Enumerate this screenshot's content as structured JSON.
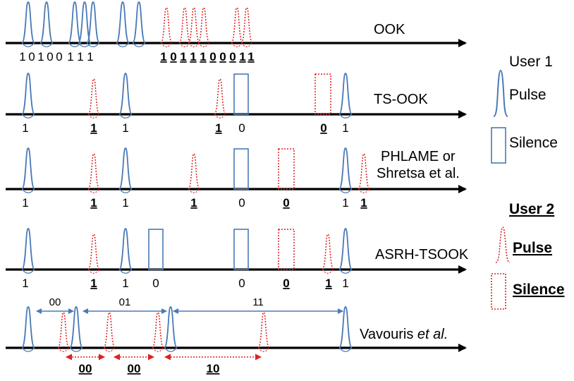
{
  "rows": [
    {
      "label": "OOK",
      "axis_y": 61,
      "user1_pulses": [
        40,
        66,
        106,
        120,
        132,
        174,
        197
      ],
      "user2_pulses": [
        236,
        262,
        275,
        289,
        336,
        350
      ],
      "user1_silences": [],
      "user2_silences": [],
      "bits": [
        {
          "text": "1",
          "x": 32,
          "u": 1
        },
        {
          "text": "0",
          "x": 45,
          "u": 1
        },
        {
          "text": "1",
          "x": 58,
          "u": 1
        },
        {
          "text": "0",
          "x": 71,
          "u": 1
        },
        {
          "text": "0",
          "x": 84,
          "u": 1
        },
        {
          "text": "1",
          "x": 100,
          "u": 1
        },
        {
          "text": "1",
          "x": 114,
          "u": 1
        },
        {
          "text": "1",
          "x": 128,
          "u": 1
        },
        {
          "text": "1",
          "x": 232,
          "u": 2
        },
        {
          "text": "0",
          "x": 246,
          "u": 2
        },
        {
          "text": "1",
          "x": 260,
          "u": 2
        },
        {
          "text": "1",
          "x": 274,
          "u": 2
        },
        {
          "text": "1",
          "x": 288,
          "u": 2
        },
        {
          "text": "0",
          "x": 302,
          "u": 2
        },
        {
          "text": "0",
          "x": 316,
          "u": 2
        },
        {
          "text": "0",
          "x": 330,
          "u": 2
        },
        {
          "text": "1",
          "x": 344,
          "u": 2
        },
        {
          "text": "1",
          "x": 356,
          "u": 2
        }
      ]
    },
    {
      "label": "TS-OOK",
      "axis_y": 162,
      "user1_pulses": [
        40,
        178,
        490
      ],
      "user2_pulses": [
        133,
        312
      ],
      "user1_silences": [
        342
      ],
      "user2_silences": [
        458
      ],
      "bits": [
        {
          "text": "1",
          "x": 36,
          "u": 1
        },
        {
          "text": "1",
          "x": 133,
          "u": 2
        },
        {
          "text": "1",
          "x": 178,
          "u": 1
        },
        {
          "text": "1",
          "x": 310,
          "u": 2
        },
        {
          "text": "0",
          "x": 343,
          "u": 1
        },
        {
          "text": "0",
          "x": 459,
          "u": 2
        },
        {
          "text": "1",
          "x": 490,
          "u": 1
        }
      ]
    },
    {
      "label": "PHLAME or",
      "label2": "Shretsa et al.",
      "axis_y": 268,
      "user1_pulses": [
        40,
        178,
        490
      ],
      "user2_pulses": [
        133,
        275,
        516
      ],
      "user1_silences": [
        342
      ],
      "user2_silences": [
        406
      ],
      "bits": [
        {
          "text": "1",
          "x": 36,
          "u": 1
        },
        {
          "text": "1",
          "x": 133,
          "u": 2
        },
        {
          "text": "1",
          "x": 178,
          "u": 1
        },
        {
          "text": "1",
          "x": 275,
          "u": 2
        },
        {
          "text": "0",
          "x": 343,
          "u": 1
        },
        {
          "text": "0",
          "x": 406,
          "u": 2
        },
        {
          "text": "1",
          "x": 490,
          "u": 1
        },
        {
          "text": "1",
          "x": 516,
          "u": 2
        }
      ]
    },
    {
      "label": "ASRH-TSOOK",
      "axis_y": 382,
      "user1_pulses": [
        40,
        178,
        490
      ],
      "user2_pulses": [
        133,
        465
      ],
      "user1_silences": [
        221,
        342
      ],
      "user2_silences": [
        406
      ],
      "bits": [
        {
          "text": "1",
          "x": 36,
          "u": 1
        },
        {
          "text": "1",
          "x": 133,
          "u": 2
        },
        {
          "text": "1",
          "x": 178,
          "u": 1
        },
        {
          "text": "0",
          "x": 221,
          "u": 1
        },
        {
          "text": "0",
          "x": 343,
          "u": 1
        },
        {
          "text": "0",
          "x": 406,
          "u": 2
        },
        {
          "text": "1",
          "x": 466,
          "u": 2
        },
        {
          "text": "1",
          "x": 490,
          "u": 1
        }
      ]
    },
    {
      "label": "Vavouris ",
      "label_italic": "et al.",
      "axis_y": 493,
      "user1_pulses": [
        40,
        108,
        242,
        490
      ],
      "user2_pulses": [
        90,
        155,
        224,
        374
      ],
      "user1_silences": [],
      "user2_silences": [],
      "bits": []
    }
  ],
  "user1_intervals": [
    {
      "text": "00",
      "x1": 52,
      "x2": 104,
      "y": 441
    },
    {
      "text": "01",
      "x1": 118,
      "x2": 236,
      "y": 441
    },
    {
      "text": "11",
      "x1": 246,
      "x2": 486,
      "y": 441
    }
  ],
  "user2_intervals": [
    {
      "text": "00",
      "x1": 94,
      "x2": 148,
      "y": 506
    },
    {
      "text": "00",
      "x1": 162,
      "x2": 218,
      "y": 506
    },
    {
      "text": "10",
      "x1": 234,
      "x2": 370,
      "y": 506
    }
  ],
  "legend": {
    "user1_title": "User 1",
    "pulse": "Pulse",
    "silence": "Silence",
    "user2_title": "User 2",
    "pulse2": "Pulse",
    "silence2": "Silence"
  },
  "colors": {
    "axis": "#000000",
    "user1": "#4a7ab5",
    "user2": "#e02020"
  }
}
